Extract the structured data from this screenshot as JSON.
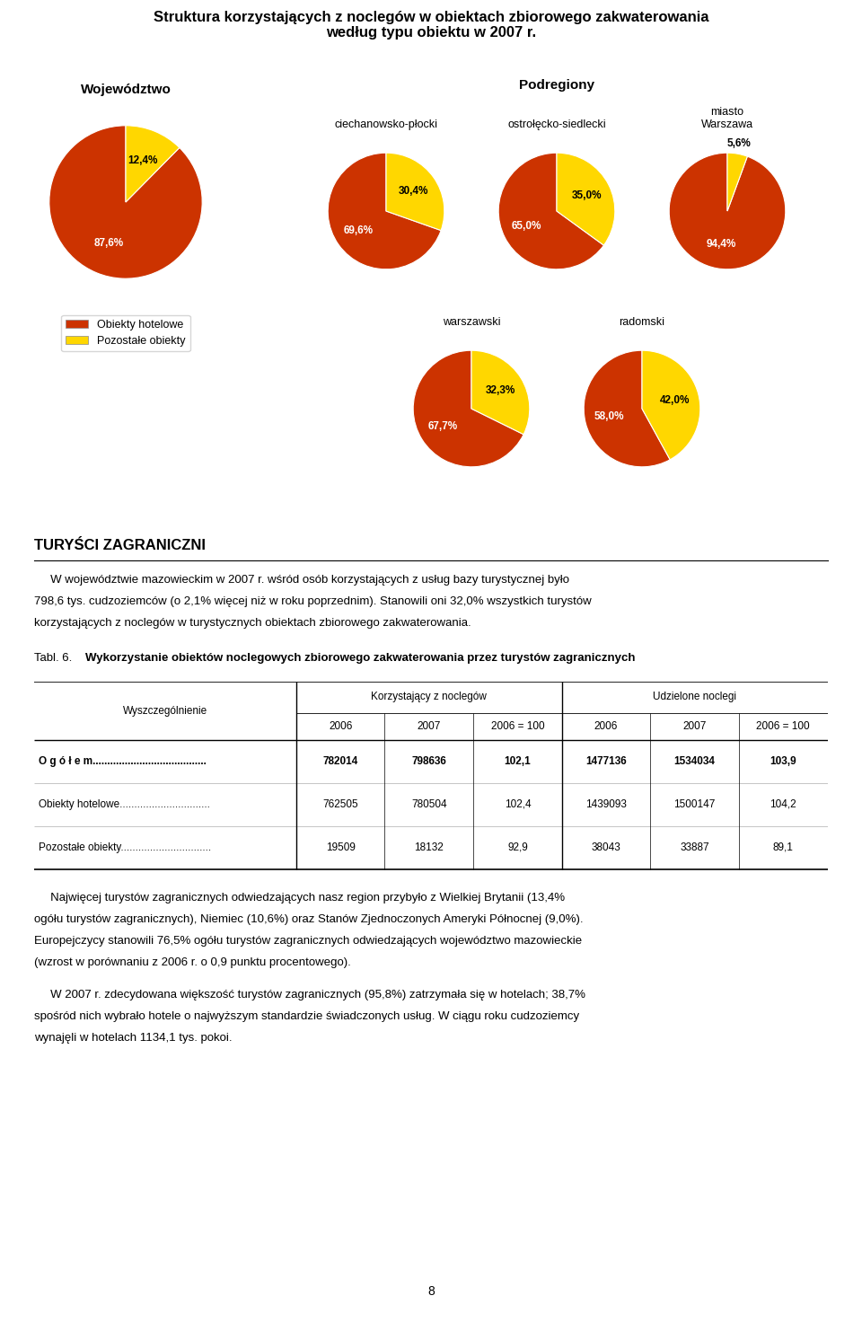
{
  "title": "Struktura korzystających z noclegów w obiektach zbiorowego zakwaterowania\nwedług typu obiektu w 2007 r.",
  "annotations": [
    "Podregiony"
  ],
  "chart_data": [
    {
      "type": "pie",
      "title": "Województwo",
      "categories": [
        "Obiekty hotelowe",
        "Pozostałe obiekty"
      ],
      "values": [
        87.6,
        12.4
      ],
      "value_labels": [
        "87,6%",
        "12,4%"
      ],
      "colors": [
        "#CC3300",
        "#FFD700"
      ],
      "data_labels": true,
      "legend": "upper center"
    },
    {
      "type": "pie",
      "title": "ciechanowsko-płocki",
      "categories": [
        "Obiekty hotelowe",
        "Pozostałe obiekty"
      ],
      "values": [
        69.6,
        30.4
      ],
      "value_labels": [
        "69,6%",
        "30,4%"
      ],
      "colors": [
        "#CC3300",
        "#FFD700"
      ],
      "data_labels": true
    },
    {
      "type": "pie",
      "title": "ostrołęcko-siedlecki",
      "categories": [
        "Obiekty hotelowe",
        "Pozostałe obiekty"
      ],
      "values": [
        65.0,
        35.0
      ],
      "value_labels": [
        "65,0%",
        "35,0%"
      ],
      "colors": [
        "#CC3300",
        "#FFD700"
      ],
      "data_labels": true
    },
    {
      "type": "pie",
      "title": "miasto\nWarszawa",
      "categories": [
        "Obiekty hotelowe",
        "Pozostałe obiekty"
      ],
      "values": [
        94.4,
        5.6
      ],
      "value_labels": [
        "94,4%",
        "5,6%"
      ],
      "colors": [
        "#CC3300",
        "#FFD700"
      ],
      "data_labels": true
    },
    {
      "type": "pie",
      "title": "warszawski",
      "categories": [
        "Obiekty hotelowe",
        "Pozostałe obiekty"
      ],
      "values": [
        67.7,
        32.3
      ],
      "value_labels": [
        "67,7%",
        "32,3%"
      ],
      "colors": [
        "#CC3300",
        "#FFD700"
      ],
      "data_labels": true
    },
    {
      "type": "pie",
      "title": "radomski",
      "categories": [
        "Obiekty hotelowe",
        "Pozostałe obiekty"
      ],
      "values": [
        58.0,
        42.0
      ],
      "value_labels": [
        "58,0%",
        "42,0%"
      ],
      "colors": [
        "#CC3300",
        "#FFD700"
      ],
      "data_labels": true
    }
  ],
  "document": {
    "heading": "TURYŚCI ZAGRANICZNI",
    "paragraphs": [
      [
        "     W województwie mazowieckim w 2007 r. wśród osób korzystających z usług bazy turystycznej było",
        "798,6 tys. cudzoziemców (o 2,1% więcej niż w roku poprzednim). Stanowili oni 32,0% wszystkich turystów",
        "korzystających z noclegów w turystycznych obiektach zbiorowego zakwaterowania."
      ],
      [
        "     Najwięcej turystów zagranicznych odwiedzających nasz region przybyło z Wielkiej Brytanii (13,4%",
        "ogółu turystów zagranicznych), Niemiec (10,6%) oraz Stanów Zjednoczonych Ameryki Północnej (9,0%).",
        "Europejczycy stanowili 76,5% ogółu turystów zagranicznych odwiedzających województwo mazowieckie",
        "(wzrost w porównaniu z 2006 r. o 0,9 punktu procentowego)."
      ],
      [
        "     W 2007 r. zdecydowana większość turystów zagranicznych (95,8%) zatrzymała się w hotelach; 38,7%",
        "spośród nich wybrało hotele o najwyższym standardzie świadczonych usług. W ciągu roku cudzoziemcy",
        "wynajęli w hotelach 1134,1 tys. pokoi."
      ]
    ],
    "table": {
      "caption_label": "Tabl. 6.",
      "caption": "Wykorzystanie obiektów noclegowych zbiorowego zakwaterowania przez turystów zagranicznych",
      "stub_header": "Wyszczególnienie",
      "column_groups": [
        {
          "name": "Korzystający z noclegów",
          "columns": [
            "2006",
            "2007",
            "2006 = 100"
          ]
        },
        {
          "name": "Udzielone noclegi",
          "columns": [
            "2006",
            "2007",
            "2006 = 100"
          ]
        }
      ],
      "rows": [
        {
          "label": "O g ó ł e m.......................................",
          "cells": [
            "782014",
            "798636",
            "102,1",
            "1477136",
            "1534034",
            "103,9"
          ]
        },
        {
          "label": "Obiekty hotelowe...............................",
          "cells": [
            "762505",
            "780504",
            "102,4",
            "1439093",
            "1500147",
            "104,2"
          ]
        },
        {
          "label": "Pozostałe obiekty...............................",
          "cells": [
            "19509",
            "18132",
            "92,9",
            "38043",
            "33887",
            "89,1"
          ]
        }
      ]
    },
    "page_number": "8"
  }
}
